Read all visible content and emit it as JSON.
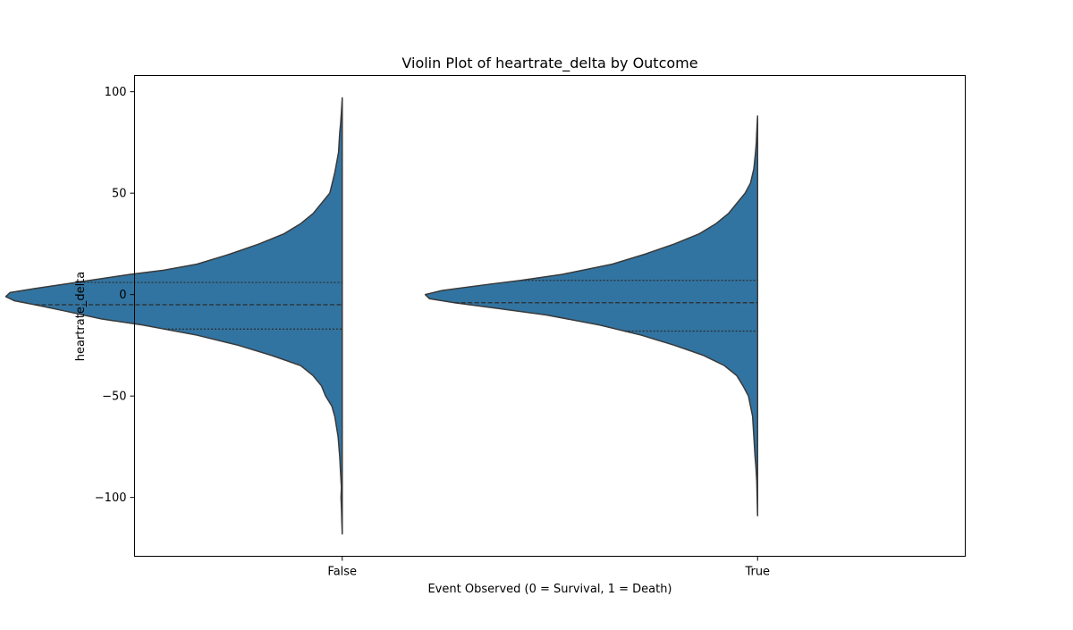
{
  "chart_data": {
    "type": "violin",
    "title": "Violin Plot of heartrate_delta by Outcome",
    "xlabel": "Event Observed (0 = Survival, 1 = Death)",
    "ylabel": "heartrate_delta",
    "ylim": [
      -129,
      108
    ],
    "yticks": [
      100,
      50,
      0,
      -50,
      -100
    ],
    "ytick_labels": [
      "100",
      "50",
      "0",
      "−50",
      "−100"
    ],
    "categories": [
      "False",
      "True"
    ],
    "colors": {
      "fill": "#3274a1",
      "edge": "#3a3a3a",
      "quartile": "#2b2b2b"
    },
    "split": "left-half",
    "violins": [
      {
        "category": "False",
        "max_width": 0.8,
        "quartiles": {
          "q1": -17,
          "median": -5,
          "q3": 6
        },
        "profile": [
          [
            97,
            0.0
          ],
          [
            90,
            0.002
          ],
          [
            84,
            0.004
          ],
          [
            80,
            0.006
          ],
          [
            70,
            0.009
          ],
          [
            60,
            0.018
          ],
          [
            55,
            0.024
          ],
          [
            50,
            0.03
          ],
          [
            45,
            0.05
          ],
          [
            40,
            0.07
          ],
          [
            35,
            0.1
          ],
          [
            30,
            0.14
          ],
          [
            25,
            0.2
          ],
          [
            20,
            0.27
          ],
          [
            15,
            0.35
          ],
          [
            12,
            0.43
          ],
          [
            10,
            0.51
          ],
          [
            6,
            0.64
          ],
          [
            3,
            0.74
          ],
          [
            1,
            0.8
          ],
          [
            -1,
            0.81
          ],
          [
            -3,
            0.79
          ],
          [
            -5,
            0.74
          ],
          [
            -8,
            0.67
          ],
          [
            -12,
            0.58
          ],
          [
            -15,
            0.48
          ],
          [
            -20,
            0.35
          ],
          [
            -25,
            0.25
          ],
          [
            -30,
            0.17
          ],
          [
            -35,
            0.1
          ],
          [
            -40,
            0.07
          ],
          [
            -45,
            0.05
          ],
          [
            -50,
            0.04
          ],
          [
            -55,
            0.025
          ],
          [
            -60,
            0.018
          ],
          [
            -70,
            0.01
          ],
          [
            -80,
            0.006
          ],
          [
            -88,
            0.004
          ],
          [
            -95,
            0.002
          ],
          [
            -100,
            0.003
          ],
          [
            -105,
            0.002
          ],
          [
            -112,
            0.001
          ],
          [
            -118,
            0.0
          ]
        ]
      },
      {
        "category": "True",
        "max_width": 0.8,
        "quartiles": {
          "q1": -18,
          "median": -4,
          "q3": 7
        },
        "profile": [
          [
            88,
            0.0
          ],
          [
            80,
            0.002
          ],
          [
            75,
            0.003
          ],
          [
            70,
            0.005
          ],
          [
            62,
            0.009
          ],
          [
            55,
            0.017
          ],
          [
            50,
            0.03
          ],
          [
            45,
            0.05
          ],
          [
            40,
            0.07
          ],
          [
            35,
            0.1
          ],
          [
            30,
            0.14
          ],
          [
            25,
            0.2
          ],
          [
            20,
            0.27
          ],
          [
            15,
            0.35
          ],
          [
            10,
            0.47
          ],
          [
            7,
            0.57
          ],
          [
            5,
            0.65
          ],
          [
            2,
            0.76
          ],
          [
            0,
            0.8
          ],
          [
            -2,
            0.79
          ],
          [
            -4,
            0.73
          ],
          [
            -7,
            0.62
          ],
          [
            -10,
            0.51
          ],
          [
            -15,
            0.38
          ],
          [
            -20,
            0.28
          ],
          [
            -25,
            0.2
          ],
          [
            -30,
            0.13
          ],
          [
            -35,
            0.08
          ],
          [
            -40,
            0.05
          ],
          [
            -45,
            0.035
          ],
          [
            -50,
            0.022
          ],
          [
            -60,
            0.012
          ],
          [
            -70,
            0.009
          ],
          [
            -80,
            0.006
          ],
          [
            -85,
            0.004
          ],
          [
            -92,
            0.002
          ],
          [
            -100,
            0.001
          ],
          [
            -109,
            0.0
          ]
        ]
      }
    ]
  }
}
